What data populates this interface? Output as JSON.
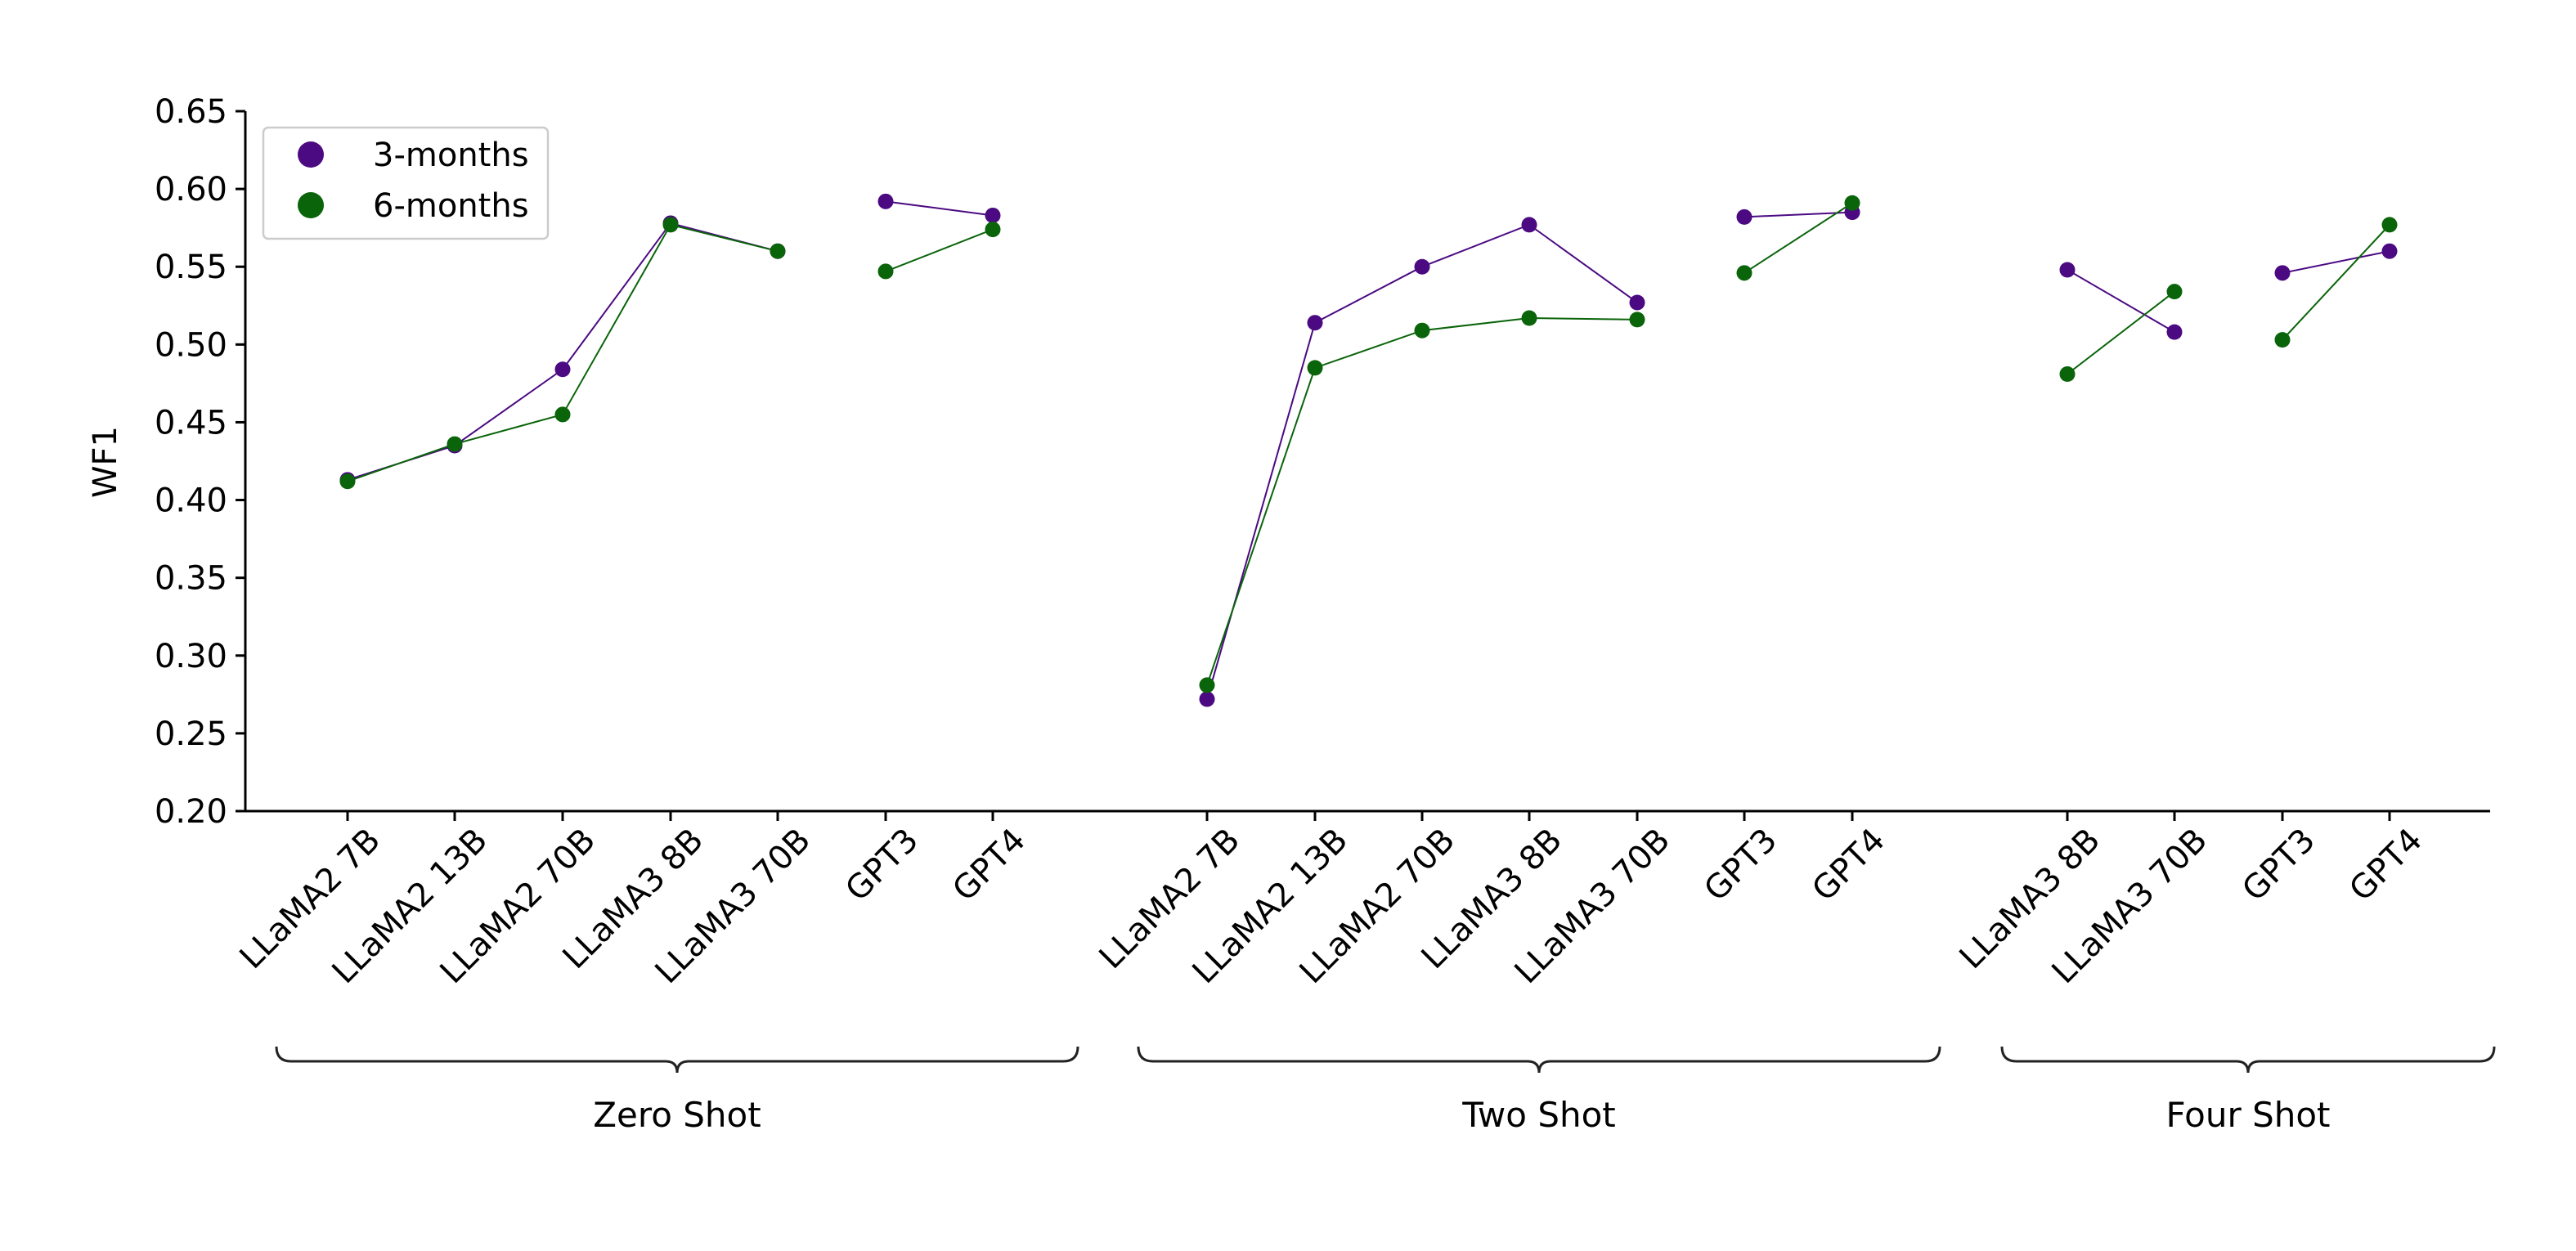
{
  "chart_data": {
    "type": "line",
    "ylabel": "WF1",
    "ylim": [
      0.2,
      0.65
    ],
    "yticks": [
      "0.20",
      "0.25",
      "0.30",
      "0.35",
      "0.40",
      "0.45",
      "0.50",
      "0.55",
      "0.60",
      "0.65"
    ],
    "grid": false,
    "legend": {
      "placement": "top-left",
      "entries": [
        {
          "label": "3-months",
          "color": "#4b0a82"
        },
        {
          "label": "6-months",
          "color": "#0a640a"
        }
      ]
    },
    "groups": [
      {
        "name": "Zero Shot",
        "categories": [
          "LLaMA2 7B",
          "LLaMA2 13B",
          "LLaMA2 70B",
          "LLaMA3 8B",
          "LLaMA3 70B",
          "GPT3",
          "GPT4"
        ],
        "segments": [
          [
            0,
            1,
            2,
            3,
            4
          ],
          [
            5,
            6
          ]
        ],
        "series": [
          {
            "name": "3-months",
            "values": [
              0.413,
              0.435,
              0.484,
              0.578,
              0.56,
              0.592,
              0.583
            ]
          },
          {
            "name": "6-months",
            "values": [
              0.412,
              0.436,
              0.455,
              0.577,
              0.56,
              0.547,
              0.574
            ]
          }
        ]
      },
      {
        "name": "Two Shot",
        "categories": [
          "LLaMA2 7B",
          "LLaMA2 13B",
          "LLaMA2 70B",
          "LLaMA3 8B",
          "LLaMA3 70B",
          "GPT3",
          "GPT4"
        ],
        "segments": [
          [
            0,
            1,
            2,
            3,
            4
          ],
          [
            5,
            6
          ]
        ],
        "series": [
          {
            "name": "3-months",
            "values": [
              0.272,
              0.514,
              0.55,
              0.577,
              0.527,
              0.582,
              0.585
            ]
          },
          {
            "name": "6-months",
            "values": [
              0.281,
              0.485,
              0.509,
              0.517,
              0.516,
              0.546,
              0.591
            ]
          }
        ]
      },
      {
        "name": "Four Shot",
        "categories": [
          "LLaMA3 8B",
          "LLaMA3 70B",
          "GPT3",
          "GPT4"
        ],
        "segments": [
          [
            0,
            1
          ],
          [
            2,
            3
          ]
        ],
        "series": [
          {
            "name": "3-months",
            "values": [
              0.548,
              0.508,
              0.546,
              0.56
            ]
          },
          {
            "name": "6-months",
            "values": [
              0.481,
              0.534,
              0.503,
              0.577
            ]
          }
        ]
      }
    ]
  }
}
